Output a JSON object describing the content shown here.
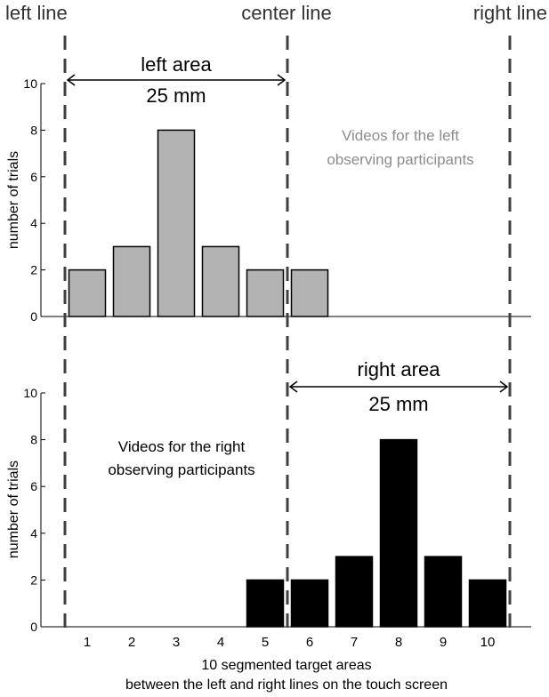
{
  "boundary_labels": {
    "left": "left line",
    "center": "center line",
    "right": "right line"
  },
  "top_panel": {
    "area_label": "left area",
    "area_width": "25 mm",
    "note_line1": "Videos for the left",
    "note_line2": "observing participants",
    "ylabel": "number of trials"
  },
  "bottom_panel": {
    "area_label": "right area",
    "area_width": "25 mm",
    "note_line1": "Videos for the right",
    "note_line2": "observing participants",
    "ylabel": "number of trials"
  },
  "xlabel_line1": "10 segmented target areas",
  "xlabel_line2": "between the left and right lines on the touch screen",
  "colors": {
    "top_bars": "#b3b3b3",
    "bottom_bars": "#000000",
    "top_note": "#8c8c8c",
    "dashed_lines": "#404040"
  },
  "chart_data": [
    {
      "type": "bar",
      "categories": [
        "1",
        "2",
        "3",
        "4",
        "5",
        "6",
        "7",
        "8",
        "9",
        "10"
      ],
      "values": [
        2,
        3,
        8,
        3,
        2,
        2,
        0,
        0,
        0,
        0
      ],
      "ylabel": "number of trials",
      "ylim": [
        0,
        10
      ],
      "yticks": [
        0,
        2,
        4,
        6,
        8,
        10
      ],
      "grid": false
    },
    {
      "type": "bar",
      "categories": [
        "1",
        "2",
        "3",
        "4",
        "5",
        "6",
        "7",
        "8",
        "9",
        "10"
      ],
      "values": [
        0,
        0,
        0,
        0,
        2,
        2,
        3,
        8,
        3,
        2
      ],
      "xlabel": "10 segmented target areas between the left and right lines on the touch screen",
      "ylabel": "number of trials",
      "ylim": [
        0,
        10
      ],
      "yticks": [
        0,
        2,
        4,
        6,
        8,
        10
      ],
      "grid": false
    }
  ]
}
